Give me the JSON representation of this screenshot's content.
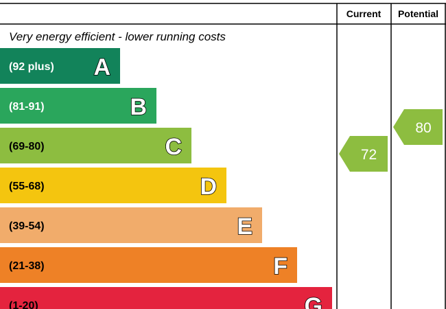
{
  "chart_data": {
    "type": "bar",
    "header": {
      "current": "Current",
      "potential": "Potential"
    },
    "top_description": "Very energy efficient - lower running costs",
    "bands": [
      {
        "letter": "A",
        "range": "(92 plus)",
        "color": "#12835a",
        "text_color": "#ffffff"
      },
      {
        "letter": "B",
        "range": "(81-91)",
        "color": "#2aa65c",
        "text_color": "#ffffff"
      },
      {
        "letter": "C",
        "range": "(69-80)",
        "color": "#8dbd40",
        "text_color": "#000000"
      },
      {
        "letter": "D",
        "range": "(55-68)",
        "color": "#f4c50f",
        "text_color": "#000000"
      },
      {
        "letter": "E",
        "range": "(39-54)",
        "color": "#f1ac6b",
        "text_color": "#000000"
      },
      {
        "letter": "F",
        "range": "(21-38)",
        "color": "#ee8126",
        "text_color": "#000000"
      },
      {
        "letter": "G",
        "range": "(1-20)",
        "color": "#e4233e",
        "text_color": "#000000"
      }
    ],
    "current": {
      "value": "72",
      "band": "C",
      "color": "#8dbd40"
    },
    "potential": {
      "value": "80",
      "band": "C",
      "color": "#8dbd40"
    }
  }
}
